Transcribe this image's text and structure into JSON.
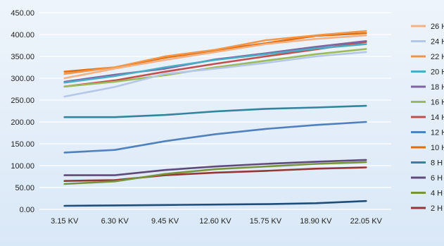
{
  "chart_data": {
    "type": "line",
    "title": "",
    "xlabel": "",
    "ylabel": "",
    "categories": [
      "3.15 KV",
      "6.30 KV",
      "9.45 KV",
      "12.60 KV",
      "15.75 KV",
      "18.90 KV",
      "22.05 KV"
    ],
    "ylim": [
      0,
      450
    ],
    "yticks": [
      "0.00",
      "50.00",
      "100.00",
      "150.00",
      "200.00",
      "250.00",
      "300.00",
      "350.00",
      "400.00",
      "450.00"
    ],
    "grid": true,
    "legend_position": "right",
    "series": [
      {
        "name": "26 H",
        "color": "#f4b183",
        "values": [
          300,
          322,
          342,
          360,
          378,
          390,
          398
        ]
      },
      {
        "name": "24 H",
        "color": "#b4c7e7",
        "values": [
          258,
          280,
          310,
          322,
          335,
          350,
          360
        ]
      },
      {
        "name": "22 H",
        "color": "#f0964a",
        "values": [
          310,
          325,
          350,
          365,
          387,
          398,
          408
        ]
      },
      {
        "name": "20 H",
        "color": "#4bacc6",
        "values": [
          290,
          305,
          325,
          342,
          355,
          368,
          378
        ]
      },
      {
        "name": "18 H",
        "color": "#8064a2",
        "values": [
          292,
          308,
          322,
          343,
          357,
          372,
          385
        ]
      },
      {
        "name": "16 H",
        "color": "#9bbb59",
        "values": [
          281,
          292,
          307,
          325,
          340,
          355,
          367
        ]
      },
      {
        "name": "14 H",
        "color": "#c0504d",
        "values": [
          281,
          295,
          315,
          333,
          350,
          366,
          383
        ]
      },
      {
        "name": "12 H",
        "color": "#4f81bd",
        "values": [
          130,
          136,
          156,
          172,
          184,
          193,
          200
        ]
      },
      {
        "name": "10 H",
        "color": "#e46c0a",
        "values": [
          315,
          325,
          347,
          364,
          380,
          397,
          403
        ]
      },
      {
        "name": "8 H",
        "color": "#31859c",
        "values": [
          211,
          211,
          216,
          224,
          230,
          233,
          237
        ]
      },
      {
        "name": "6 H",
        "color": "#604a7b",
        "values": [
          78,
          78,
          90,
          98,
          104,
          109,
          113
        ]
      },
      {
        "name": "4 H",
        "color": "#77933c",
        "values": [
          58,
          64,
          81,
          92,
          98,
          104,
          108
        ]
      },
      {
        "name": "2 H",
        "color": "#953735",
        "values": [
          65,
          67,
          78,
          84,
          88,
          93,
          96
        ]
      },
      {
        "name": "",
        "color": "#1f4e79",
        "values": [
          8,
          9,
          10,
          11,
          12,
          14,
          19
        ]
      }
    ]
  }
}
